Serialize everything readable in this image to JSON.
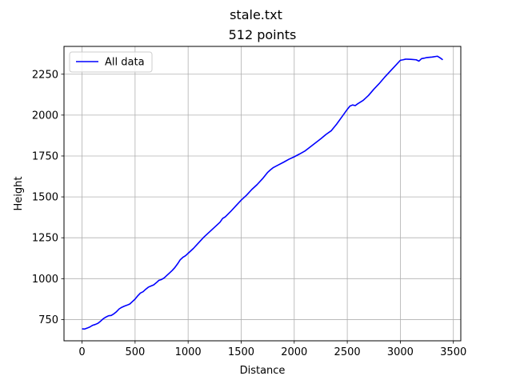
{
  "chart_data": {
    "type": "line",
    "suptitle": "stale.txt",
    "title": "512 points",
    "xlabel": "Distance",
    "ylabel": "Height",
    "xlim": [
      -170,
      3570
    ],
    "ylim": [
      620,
      2420
    ],
    "xticks": [
      0,
      500,
      1000,
      1500,
      2000,
      2500,
      3000,
      3500
    ],
    "yticks": [
      750,
      1000,
      1250,
      1500,
      1750,
      2000,
      2250
    ],
    "grid": true,
    "legend_position": "top-left",
    "series": [
      {
        "name": "All data",
        "color": "#0000ff",
        "x": [
          0,
          25,
          50,
          75,
          100,
          125,
          150,
          175,
          200,
          225,
          250,
          275,
          300,
          325,
          350,
          375,
          400,
          425,
          450,
          475,
          500,
          525,
          550,
          575,
          600,
          625,
          650,
          675,
          700,
          725,
          750,
          775,
          800,
          825,
          850,
          875,
          900,
          925,
          950,
          975,
          1000,
          1050,
          1100,
          1150,
          1200,
          1250,
          1300,
          1325,
          1350,
          1400,
          1450,
          1500,
          1550,
          1600,
          1650,
          1700,
          1750,
          1775,
          1800,
          1850,
          1900,
          1950,
          2000,
          2050,
          2100,
          2150,
          2200,
          2250,
          2300,
          2350,
          2400,
          2450,
          2500,
          2525,
          2550,
          2575,
          2600,
          2650,
          2700,
          2750,
          2800,
          2850,
          2900,
          2950,
          3000,
          3025,
          3050,
          3100,
          3150,
          3175,
          3200,
          3225,
          3250,
          3300,
          3350,
          3375,
          3400
        ],
        "y": [
          693,
          692,
          698,
          705,
          715,
          720,
          727,
          740,
          755,
          765,
          773,
          775,
          785,
          798,
          815,
          825,
          832,
          838,
          845,
          860,
          875,
          895,
          912,
          920,
          935,
          948,
          955,
          962,
          975,
          990,
          995,
          1005,
          1020,
          1035,
          1050,
          1068,
          1090,
          1115,
          1130,
          1140,
          1155,
          1185,
          1220,
          1255,
          1285,
          1315,
          1345,
          1368,
          1378,
          1410,
          1445,
          1480,
          1510,
          1545,
          1575,
          1610,
          1650,
          1665,
          1678,
          1695,
          1712,
          1730,
          1745,
          1762,
          1780,
          1805,
          1830,
          1855,
          1882,
          1905,
          1945,
          1990,
          2035,
          2055,
          2062,
          2058,
          2070,
          2090,
          2120,
          2158,
          2192,
          2230,
          2265,
          2300,
          2335,
          2338,
          2342,
          2341,
          2338,
          2330,
          2345,
          2348,
          2352,
          2355,
          2360,
          2350,
          2338
        ]
      }
    ]
  }
}
